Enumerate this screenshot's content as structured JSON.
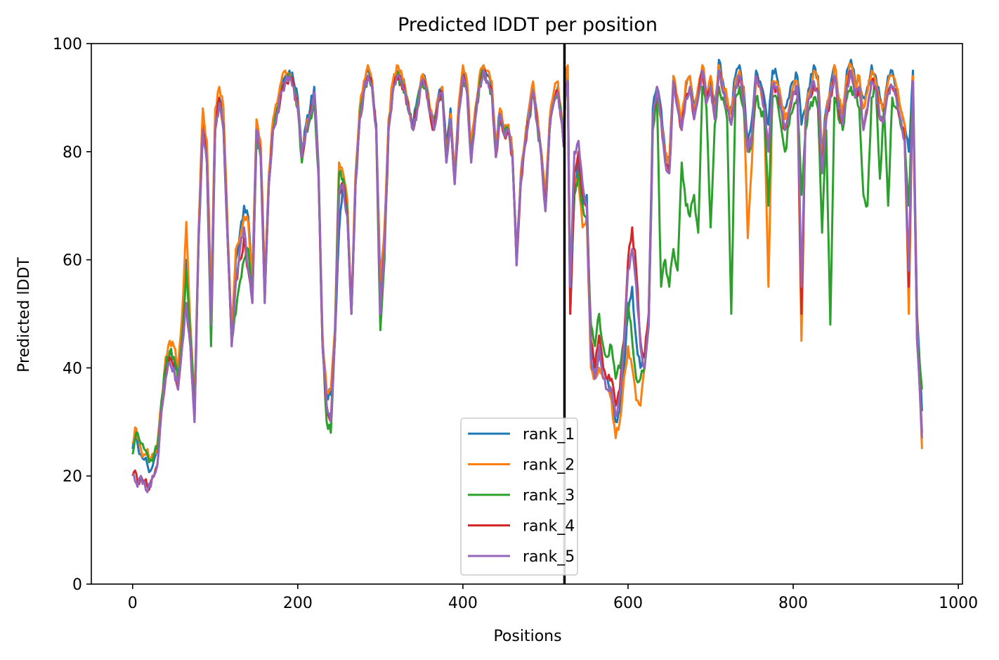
{
  "chart_data": {
    "type": "line",
    "title": "Predicted lDDT per position",
    "xlabel": "Positions",
    "ylabel": "Predicted lDDT",
    "xlim": [
      -50,
      1005
    ],
    "ylim": [
      0,
      100
    ],
    "xticks": [
      0,
      200,
      400,
      600,
      800,
      1000
    ],
    "yticks": [
      0,
      20,
      40,
      60,
      80,
      100
    ],
    "grid": false,
    "legend_position": "lower center",
    "chain_break": 523,
    "colors": [
      "#1f77b4",
      "#ff7f0e",
      "#2ca02c",
      "#d62728",
      "#9467bd"
    ],
    "x_range": [
      0,
      956
    ],
    "anchor_positions": [
      0,
      3,
      6,
      10,
      14,
      18,
      22,
      26,
      30,
      35,
      40,
      45,
      50,
      55,
      60,
      65,
      70,
      75,
      80,
      85,
      90,
      95,
      100,
      105,
      110,
      115,
      120,
      125,
      130,
      135,
      140,
      145,
      150,
      155,
      160,
      165,
      170,
      175,
      180,
      185,
      190,
      195,
      200,
      205,
      210,
      215,
      220,
      225,
      230,
      235,
      240,
      245,
      250,
      255,
      260,
      265,
      270,
      275,
      280,
      285,
      290,
      295,
      300,
      305,
      310,
      315,
      320,
      325,
      330,
      335,
      340,
      345,
      350,
      355,
      360,
      365,
      370,
      375,
      380,
      385,
      390,
      395,
      400,
      405,
      410,
      415,
      420,
      425,
      430,
      435,
      440,
      445,
      450,
      455,
      460,
      465,
      470,
      475,
      480,
      485,
      490,
      495,
      500,
      505,
      510,
      515,
      520,
      522,
      524,
      527,
      530,
      535,
      540,
      545,
      550,
      555,
      560,
      565,
      570,
      575,
      580,
      585,
      590,
      595,
      600,
      605,
      610,
      615,
      620,
      625,
      630,
      635,
      640,
      645,
      650,
      655,
      660,
      665,
      670,
      675,
      680,
      685,
      690,
      695,
      700,
      705,
      710,
      715,
      720,
      725,
      730,
      735,
      740,
      745,
      750,
      755,
      760,
      765,
      770,
      775,
      780,
      785,
      790,
      795,
      800,
      805,
      810,
      815,
      820,
      825,
      830,
      835,
      840,
      845,
      850,
      855,
      860,
      865,
      870,
      875,
      880,
      885,
      890,
      895,
      900,
      905,
      910,
      915,
      920,
      925,
      930,
      935,
      940,
      945,
      950,
      956
    ],
    "series": [
      {
        "name": "rank_1",
        "values": [
          25,
          27,
          26,
          24,
          23,
          22,
          21,
          23,
          25,
          33,
          40,
          43,
          42,
          38,
          48,
          60,
          45,
          32,
          65,
          85,
          80,
          50,
          85,
          90,
          85,
          65,
          45,
          60,
          65,
          70,
          68,
          55,
          85,
          80,
          55,
          75,
          85,
          88,
          92,
          94,
          95,
          93,
          90,
          80,
          85,
          88,
          92,
          78,
          45,
          35,
          35,
          45,
          65,
          75,
          70,
          50,
          75,
          88,
          92,
          95,
          93,
          85,
          55,
          65,
          85,
          92,
          95,
          94,
          92,
          88,
          85,
          90,
          94,
          93,
          88,
          85,
          90,
          92,
          80,
          88,
          75,
          88,
          95,
          92,
          80,
          87,
          93,
          96,
          94,
          92,
          80,
          88,
          84,
          85,
          80,
          60,
          75,
          82,
          88,
          92,
          86,
          80,
          70,
          85,
          90,
          92,
          86,
          82,
          92,
          94,
          50,
          72,
          78,
          70,
          72,
          45,
          38,
          42,
          40,
          38,
          35,
          30,
          32,
          40,
          50,
          55,
          45,
          40,
          42,
          50,
          88,
          92,
          88,
          80,
          78,
          94,
          90,
          85,
          92,
          94,
          88,
          92,
          96,
          90,
          93,
          88,
          97,
          93,
          90,
          88,
          94,
          96,
          92,
          82,
          86,
          95,
          93,
          90,
          85,
          95,
          94,
          90,
          88,
          90,
          93,
          94,
          85,
          88,
          92,
          96,
          94,
          80,
          88,
          92,
          96,
          90,
          88,
          95,
          97,
          93,
          94,
          90,
          92,
          96,
          94,
          90,
          88,
          94,
          95,
          92,
          88,
          85,
          80,
          95,
          50,
          32
        ],
        "dev": [
          0,
          0,
          0,
          0,
          0,
          0,
          0,
          0,
          0,
          0,
          0,
          0,
          0,
          0,
          0,
          0,
          0,
          0,
          0,
          0,
          0,
          0,
          0,
          0,
          0,
          0,
          0,
          0,
          0,
          0,
          0,
          0,
          0,
          0,
          0,
          0,
          0,
          0,
          0,
          0,
          0,
          0,
          0,
          0,
          0,
          0,
          0,
          0,
          0,
          0,
          0,
          0,
          0,
          0,
          0,
          0,
          0,
          0,
          0,
          0,
          0,
          0,
          0,
          0,
          0,
          0,
          0,
          0,
          0,
          0,
          0,
          0,
          0,
          0,
          0,
          0,
          0,
          0,
          0,
          0,
          0,
          0,
          0,
          0,
          0,
          0,
          0,
          0,
          0,
          0,
          0,
          0,
          0,
          0,
          0,
          0,
          0,
          0,
          0,
          0,
          0,
          0,
          0,
          0,
          0,
          0,
          0,
          0,
          0,
          0,
          0,
          0,
          0,
          0,
          0,
          0,
          0,
          0,
          0,
          0,
          0,
          0,
          0,
          0,
          0,
          0,
          0,
          0,
          0,
          0,
          0,
          0,
          0,
          0,
          0,
          0,
          0,
          0,
          0,
          0,
          0,
          0,
          0,
          0,
          0,
          0,
          0,
          0,
          0,
          0,
          0,
          0,
          0,
          0,
          0,
          0,
          0,
          0,
          0,
          0,
          0,
          0,
          0,
          0,
          0,
          0,
          0,
          0,
          0,
          0,
          0,
          0,
          0,
          0,
          0,
          0,
          0,
          0,
          0,
          0,
          0,
          0,
          0,
          0,
          0,
          0,
          0,
          0,
          0,
          0,
          0,
          0,
          0,
          0,
          0,
          0
        ]
      },
      {
        "name": "rank_2",
        "values": [
          26,
          29,
          27,
          25,
          24,
          25,
          23,
          24,
          26,
          34,
          42,
          45,
          44,
          40,
          50,
          67,
          48,
          33,
          66,
          88,
          82,
          52,
          88,
          92,
          88,
          66,
          47,
          62,
          64,
          68,
          67,
          57,
          86,
          82,
          56,
          76,
          86,
          89,
          93,
          95,
          94,
          92,
          89,
          79,
          84,
          87,
          91,
          77,
          46,
          36,
          36,
          47,
          78,
          76,
          71,
          51,
          76,
          88,
          93,
          96,
          93,
          84,
          56,
          66,
          86,
          93,
          96,
          95,
          92,
          88,
          84,
          89,
          94,
          93,
          88,
          85,
          90,
          92,
          79,
          87,
          76,
          89,
          96,
          93,
          81,
          88,
          94,
          96,
          95,
          93,
          80,
          88,
          84,
          85,
          80,
          60,
          76,
          82,
          88,
          93,
          87,
          80,
          71,
          86,
          91,
          93,
          86,
          82,
          93,
          96,
          52,
          74,
          74,
          66,
          68,
          40,
          38,
          40,
          38,
          36,
          34,
          27,
          30,
          38,
          44,
          40,
          34,
          33,
          40,
          48,
          86,
          90,
          86,
          80,
          78,
          94,
          90,
          86,
          93,
          94,
          88,
          92,
          96,
          91,
          94,
          88,
          96,
          92,
          90,
          87,
          93,
          95,
          91,
          64,
          78,
          94,
          92,
          88,
          55,
          93,
          93,
          90,
          86,
          88,
          92,
          93,
          45,
          88,
          91,
          95,
          93,
          78,
          87,
          91,
          96,
          90,
          87,
          94,
          96,
          92,
          94,
          88,
          91,
          95,
          93,
          89,
          88,
          93,
          94,
          92,
          88,
          85,
          50,
          94,
          48,
          25
        ]
      },
      {
        "name": "rank_3",
        "values": [
          24,
          27,
          28,
          26,
          25,
          24,
          23,
          24,
          25,
          34,
          40,
          43,
          42,
          38,
          46,
          58,
          46,
          32,
          64,
          84,
          78,
          44,
          84,
          89,
          84,
          64,
          45,
          50,
          56,
          60,
          62,
          54,
          82,
          79,
          54,
          74,
          84,
          87,
          91,
          93,
          94,
          92,
          88,
          78,
          84,
          86,
          90,
          76,
          44,
          30,
          28,
          46,
          76,
          75,
          69,
          50,
          74,
          86,
          91,
          94,
          92,
          84,
          47,
          60,
          84,
          91,
          94,
          93,
          91,
          87,
          84,
          89,
          93,
          92,
          87,
          84,
          89,
          91,
          78,
          86,
          74,
          87,
          94,
          91,
          79,
          86,
          92,
          95,
          93,
          91,
          79,
          87,
          83,
          84,
          79,
          59,
          74,
          81,
          86,
          91,
          85,
          79,
          69,
          84,
          89,
          91,
          85,
          81,
          90,
          93,
          52,
          72,
          76,
          70,
          68,
          48,
          44,
          50,
          44,
          42,
          44,
          38,
          40,
          45,
          52,
          45,
          38,
          38,
          40,
          48,
          84,
          90,
          55,
          60,
          55,
          62,
          58,
          78,
          70,
          68,
          72,
          65,
          92,
          88,
          66,
          85,
          92,
          90,
          86,
          50,
          90,
          92,
          88,
          80,
          82,
          90,
          88,
          86,
          70,
          90,
          90,
          85,
          80,
          85,
          88,
          90,
          72,
          84,
          88,
          90,
          88,
          65,
          84,
          48,
          90,
          86,
          84,
          90,
          92,
          90,
          88,
          72,
          70,
          90,
          92,
          75,
          88,
          70,
          90,
          88,
          85,
          82,
          70,
          92,
          45,
          36
        ]
      },
      {
        "name": "rank_4",
        "values": [
          20,
          21,
          19,
          20,
          19,
          18,
          19,
          20,
          22,
          32,
          38,
          42,
          40,
          36,
          44,
          52,
          44,
          30,
          64,
          84,
          78,
          48,
          84,
          90,
          85,
          64,
          44,
          56,
          60,
          64,
          58,
          52,
          84,
          80,
          52,
          74,
          84,
          87,
          91,
          93,
          94,
          92,
          88,
          79,
          84,
          87,
          91,
          77,
          44,
          33,
          30,
          45,
          72,
          74,
          68,
          50,
          74,
          86,
          91,
          94,
          92,
          84,
          50,
          62,
          84,
          91,
          94,
          93,
          91,
          87,
          84,
          88,
          93,
          92,
          87,
          84,
          89,
          91,
          78,
          86,
          74,
          87,
          94,
          91,
          78,
          86,
          92,
          95,
          93,
          91,
          79,
          87,
          83,
          84,
          79,
          59,
          74,
          81,
          86,
          91,
          85,
          79,
          69,
          84,
          89,
          91,
          85,
          81,
          90,
          93,
          50,
          76,
          80,
          72,
          70,
          45,
          40,
          46,
          40,
          38,
          38,
          33,
          36,
          45,
          60,
          66,
          58,
          45,
          42,
          50,
          86,
          92,
          86,
          78,
          76,
          93,
          88,
          84,
          90,
          92,
          86,
          90,
          95,
          89,
          92,
          86,
          95,
          91,
          88,
          85,
          92,
          94,
          89,
          80,
          83,
          94,
          92,
          88,
          80,
          92,
          92,
          88,
          84,
          87,
          91,
          92,
          50,
          86,
          90,
          93,
          91,
          76,
          86,
          90,
          94,
          88,
          85,
          92,
          95,
          90,
          92,
          84,
          88,
          93,
          92,
          86,
          86,
          91,
          92,
          90,
          86,
          82,
          55,
          93,
          45,
          28
        ]
      },
      {
        "name": "rank_5",
        "values": [
          20,
          19,
          18,
          20,
          19,
          17,
          18,
          20,
          22,
          32,
          38,
          41,
          40,
          36,
          44,
          52,
          44,
          30,
          64,
          84,
          78,
          48,
          84,
          89,
          84,
          64,
          44,
          56,
          62,
          66,
          58,
          52,
          84,
          80,
          52,
          74,
          84,
          87,
          91,
          93,
          94,
          92,
          88,
          79,
          84,
          87,
          91,
          77,
          44,
          33,
          30,
          45,
          72,
          74,
          68,
          50,
          74,
          86,
          91,
          94,
          92,
          84,
          50,
          62,
          84,
          91,
          94,
          93,
          91,
          87,
          84,
          88,
          93,
          92,
          87,
          84,
          89,
          91,
          78,
          86,
          74,
          87,
          94,
          91,
          78,
          86,
          92,
          95,
          93,
          91,
          79,
          87,
          83,
          84,
          79,
          59,
          74,
          81,
          86,
          91,
          85,
          79,
          69,
          84,
          89,
          91,
          85,
          81,
          90,
          93,
          55,
          80,
          82,
          74,
          70,
          42,
          38,
          44,
          38,
          36,
          36,
          31,
          35,
          44,
          58,
          62,
          55,
          44,
          40,
          48,
          86,
          92,
          86,
          78,
          76,
          93,
          88,
          84,
          90,
          92,
          86,
          90,
          95,
          89,
          92,
          86,
          95,
          91,
          88,
          85,
          92,
          94,
          89,
          80,
          83,
          94,
          92,
          88,
          80,
          92,
          92,
          88,
          84,
          87,
          91,
          92,
          55,
          86,
          90,
          93,
          91,
          76,
          86,
          90,
          94,
          88,
          85,
          92,
          95,
          90,
          92,
          84,
          88,
          93,
          92,
          86,
          86,
          91,
          92,
          90,
          86,
          82,
          58,
          93,
          45,
          27
        ]
      }
    ]
  }
}
